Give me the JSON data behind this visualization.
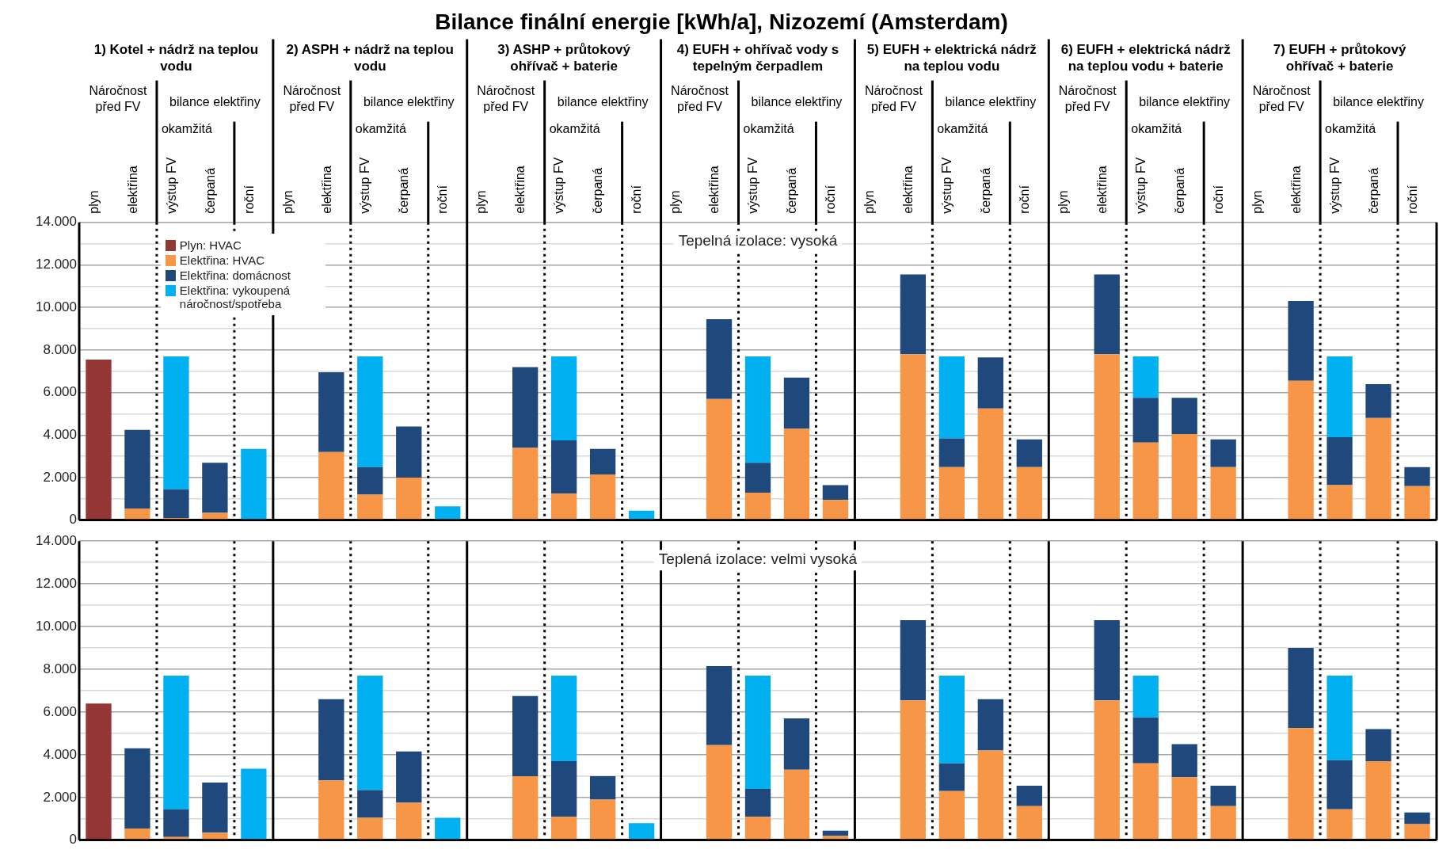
{
  "chart_data": [
    {
      "type": "bar",
      "title": "Bilance finální energie [kWh/a], Nizozemí (Amsterdam)",
      "stacked": true,
      "grid": true,
      "legend": "top left",
      "categories": [
        "plyn",
        "elektřina",
        "výstup FV",
        "čerpaná",
        "roční",
        "plyn",
        "elektřina",
        "výstup FV",
        "čerpaná",
        "roční",
        "plyn",
        "elektřina",
        "výstup FV",
        "čerpaná",
        "roční",
        "plyn",
        "elektřina",
        "výstup FV",
        "čerpaná",
        "roční",
        "plyn",
        "elektřina",
        "výstup FV",
        "čerpaná",
        "roční",
        "plyn",
        "elektřina",
        "výstup FV",
        "čerpaná",
        "roční",
        "plyn",
        "elektřina",
        "výstup FV",
        "čerpaná",
        "roční"
      ],
      "ylim": [
        0,
        14000
      ],
      "yticks": [
        {
          "value": 0,
          "label": "0"
        },
        {
          "value": 1000,
          "label": null
        },
        {
          "value": 2000,
          "label": "2.000"
        },
        {
          "value": 3000,
          "label": null
        },
        {
          "value": 4000,
          "label": "4.000"
        },
        {
          "value": 5000,
          "label": null
        },
        {
          "value": 6000,
          "label": "6.000"
        },
        {
          "value": 7000,
          "label": null
        },
        {
          "value": 8000,
          "label": "8.000"
        },
        {
          "value": 9000,
          "label": null
        },
        {
          "value": 10000,
          "label": "10.000"
        },
        {
          "value": 11000,
          "label": null
        },
        {
          "value": 12000,
          "label": "12.000"
        },
        {
          "value": 13000,
          "label": null
        },
        {
          "value": 14000,
          "label": "14.000"
        }
      ],
      "series": [
        {
          "name": "Plyn: HVAC",
          "color": "#943634",
          "values": [
            7550,
            null,
            null,
            null,
            null,
            null,
            null,
            null,
            null,
            null,
            null,
            null,
            null,
            null,
            null,
            null,
            null,
            null,
            null,
            null,
            null,
            null,
            null,
            null,
            null,
            null,
            null,
            null,
            null,
            null,
            null,
            null,
            null,
            null,
            null
          ]
        },
        {
          "name": "Elektřina: HVAC",
          "color": "#f79646",
          "values": [
            null,
            550,
            100,
            350,
            null,
            null,
            3200,
            1200,
            2000,
            null,
            null,
            3400,
            1250,
            2150,
            null,
            null,
            5700,
            1300,
            4300,
            950,
            null,
            7800,
            2500,
            5250,
            2500,
            null,
            7800,
            3650,
            4050,
            2500,
            null,
            6550,
            1650,
            4800,
            1600
          ]
        },
        {
          "name": "Elektřina: domácnost",
          "color": "#1f497d",
          "values": [
            null,
            3700,
            1350,
            2350,
            null,
            null,
            3750,
            1300,
            2400,
            null,
            null,
            3800,
            2500,
            1200,
            null,
            null,
            3750,
            1400,
            2400,
            700,
            null,
            3750,
            1350,
            2400,
            1300,
            null,
            3750,
            2100,
            1700,
            1300,
            null,
            3750,
            2250,
            1600,
            900
          ]
        },
        {
          "name": "Elektřina: vykoupená náročnost/spotřeba",
          "color": "#00b0f0",
          "values": [
            null,
            null,
            6250,
            null,
            3350,
            null,
            null,
            5200,
            null,
            650,
            null,
            null,
            3950,
            null,
            450,
            null,
            null,
            5000,
            null,
            null,
            null,
            null,
            3850,
            null,
            null,
            null,
            null,
            1950,
            null,
            null,
            null,
            null,
            3800,
            null,
            null
          ]
        }
      ],
      "annotations": [
        "Tepelná izolace: vysoká",
        "1) Kotel + nádrž na teplou vodu",
        "2) ASPH + nádrž na teplou vodu",
        "3) ASHP + průtokový ohřívač + baterie",
        "4) EUFH + ohřívač vody s tepelným čerpadlem",
        "5) EUFH + elektrická nádrž na teplou vodu",
        "6) EUFH + elektrická nádrž na teplou vodu + baterie",
        "7) EUFH + průtokový ohřívač + baterie",
        "Náročnost před FV",
        "bilance elektřiny",
        "okamžitá",
        "Náročnost před FV",
        "bilance elektřiny",
        "okamžitá",
        "Náročnost před FV",
        "bilance elektřiny",
        "okamžitá",
        "Náročnost před FV",
        "bilance elektřiny",
        "okamžitá",
        "Náročnost před FV",
        "bilance elektřiny",
        "okamžitá",
        "Náročnost před FV",
        "bilance elektřiny",
        "okamžitá",
        "Náročnost před FV",
        "bilance elektřiny",
        "okamžitá"
      ]
    },
    {
      "type": "bar",
      "stacked": true,
      "grid": true,
      "tick_labels": "y",
      "categories": [
        null,
        null,
        null,
        null,
        null,
        null,
        null,
        null,
        null,
        null,
        null,
        null,
        null,
        null,
        null,
        null,
        null,
        null,
        null,
        null,
        null,
        null,
        null,
        null,
        null,
        null,
        null,
        null,
        null,
        null,
        null,
        null,
        null,
        null,
        null
      ],
      "ylim": [
        0,
        14000
      ],
      "yticks": [
        {
          "value": 0,
          "label": "0"
        },
        {
          "value": 1000,
          "label": null
        },
        {
          "value": 2000,
          "label": "2.000"
        },
        {
          "value": 3000,
          "label": null
        },
        {
          "value": 4000,
          "label": "4.000"
        },
        {
          "value": 5000,
          "label": null
        },
        {
          "value": 6000,
          "label": "6.000"
        },
        {
          "value": 7000,
          "label": null
        },
        {
          "value": 8000,
          "label": "8.000"
        },
        {
          "value": 9000,
          "label": null
        },
        {
          "value": 10000,
          "label": "10.000"
        },
        {
          "value": 11000,
          "label": null
        },
        {
          "value": 12000,
          "label": "12.000"
        },
        {
          "value": 13000,
          "label": null
        },
        {
          "value": 14000,
          "label": "14.000"
        }
      ],
      "series": [
        {
          "color": "#943634",
          "values": [
            6400,
            null,
            null,
            null,
            null,
            null,
            null,
            null,
            null,
            null,
            null,
            null,
            null,
            null,
            null,
            null,
            null,
            null,
            null,
            null,
            null,
            null,
            null,
            null,
            null,
            null,
            null,
            null,
            null,
            null,
            null,
            null,
            null,
            null,
            null
          ]
        },
        {
          "color": "#f79646",
          "values": [
            null,
            550,
            150,
            350,
            null,
            null,
            2800,
            1050,
            1750,
            null,
            null,
            3000,
            1100,
            1900,
            null,
            null,
            4450,
            1100,
            3300,
            200,
            null,
            6550,
            2300,
            4200,
            1600,
            null,
            6550,
            3600,
            2950,
            1600,
            null,
            5250,
            1450,
            3700,
            750
          ]
        },
        {
          "color": "#1f497d",
          "values": [
            null,
            3750,
            1300,
            2350,
            null,
            null,
            3800,
            1300,
            2400,
            null,
            null,
            3750,
            2600,
            1100,
            null,
            null,
            3700,
            1300,
            2400,
            250,
            null,
            3750,
            1300,
            2400,
            950,
            null,
            3750,
            2150,
            1550,
            950,
            null,
            3750,
            2300,
            1500,
            550
          ]
        },
        {
          "color": "#00b0f0",
          "values": [
            null,
            null,
            6250,
            null,
            3350,
            null,
            null,
            5350,
            null,
            1050,
            null,
            null,
            4000,
            null,
            800,
            null,
            null,
            5300,
            null,
            null,
            null,
            null,
            4100,
            null,
            null,
            null,
            null,
            1950,
            null,
            null,
            null,
            null,
            3950,
            null,
            null
          ]
        }
      ],
      "annotations": [
        "Teplená izolace: velmi vysoká"
      ]
    }
  ]
}
